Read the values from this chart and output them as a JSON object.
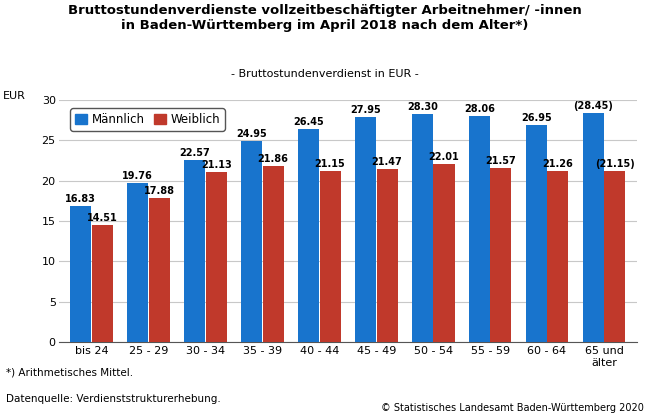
{
  "title_line1": "Bruttostundenverdienste vollzeitbeschäftigter Arbeitnehmer/ -innen",
  "title_line2": "in Baden-Württemberg im April 2018 nach dem Alter*)",
  "subtitle": "- Bruttostundenverdienst in EUR -",
  "ylabel": "EUR",
  "categories": [
    "bis 24",
    "25 - 29",
    "30 - 34",
    "35 - 39",
    "40 - 44",
    "45 - 49",
    "50 - 54",
    "55 - 59",
    "60 - 64",
    "65 und\nälter"
  ],
  "maennlich": [
    16.83,
    19.76,
    22.57,
    24.95,
    26.45,
    27.95,
    28.3,
    28.06,
    26.95,
    28.45
  ],
  "weiblich": [
    14.51,
    17.88,
    21.13,
    21.86,
    21.15,
    21.47,
    22.01,
    21.57,
    21.26,
    21.15
  ],
  "maennlich_label": "Männlich",
  "weiblich_label": "Weiblich",
  "color_maennlich": "#1874CD",
  "color_weiblich": "#C0392B",
  "ylim": [
    0,
    30
  ],
  "yticks": [
    0,
    5,
    10,
    15,
    20,
    25,
    30
  ],
  "footnote1": "*) Arithmetisches Mittel.",
  "footnote2": "Datenquelle: Verdienststrukturerhebung.",
  "copyright": "© Statistisches Landesamt Baden-Württemberg 2020",
  "background_color": "#ffffff",
  "plot_bg_color": "#ffffff",
  "grid_color": "#c8c8c8",
  "bar_value_fontsize": 7.0,
  "title_fontsize": 9.5,
  "subtitle_fontsize": 8.0,
  "legend_fontsize": 8.5,
  "tick_fontsize": 8.0,
  "footnote_fontsize": 7.5,
  "copyright_fontsize": 7.0
}
